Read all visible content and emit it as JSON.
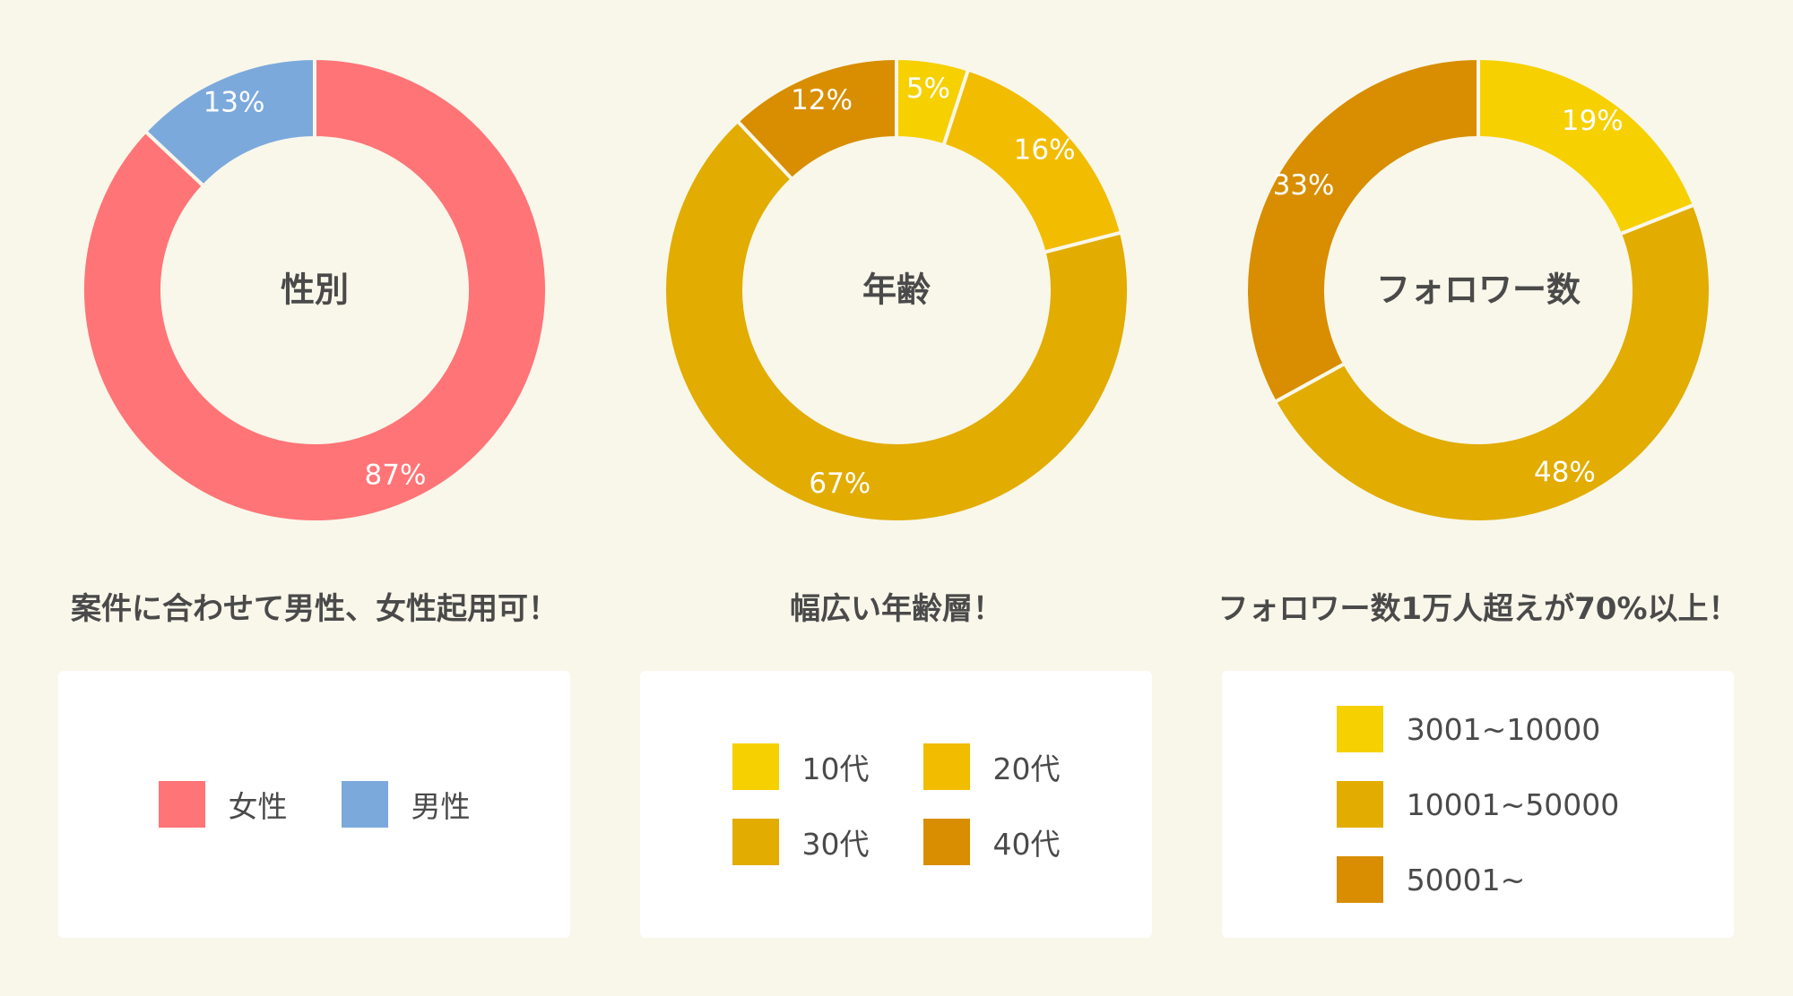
{
  "chart_data": [
    {
      "type": "pie",
      "title": "性別",
      "caption": "案件に合わせて男性、女性起用可！",
      "categories": [
        "女性",
        "男性"
      ],
      "values": [
        87,
        13
      ],
      "value_labels": [
        "87%",
        "13%"
      ],
      "colors": [
        "#ff7477",
        "#7ba9dc"
      ]
    },
    {
      "type": "pie",
      "title": "年齢",
      "caption": "幅広い年齢層！",
      "categories": [
        "10代",
        "20代",
        "30代",
        "40代"
      ],
      "values": [
        5,
        16,
        67,
        12
      ],
      "value_labels": [
        "5%",
        "16%",
        "67%",
        "12%"
      ],
      "colors": [
        "#f7d000",
        "#f2bc00",
        "#e2ac00",
        "#d88e00"
      ]
    },
    {
      "type": "pie",
      "title": "フォロワー数",
      "caption": "フォロワー数1万人超えが70%以上！",
      "categories": [
        "3001~10000",
        "10001~50000",
        "50001~"
      ],
      "values": [
        19,
        48,
        33
      ],
      "value_labels": [
        "19%",
        "48%",
        "33%"
      ],
      "colors": [
        "#f7d000",
        "#e2ac00",
        "#d88e00"
      ]
    }
  ]
}
